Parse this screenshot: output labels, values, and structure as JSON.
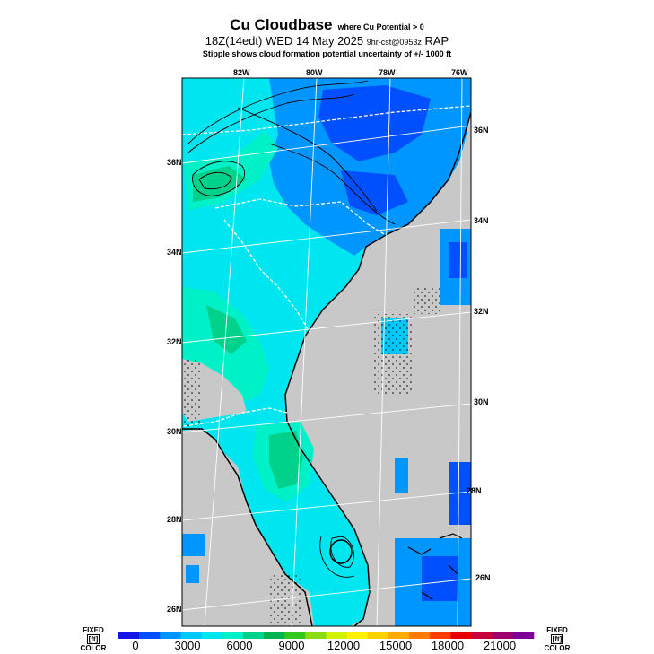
{
  "title": {
    "main": "Cu Cloudbase",
    "qualifier": "where Cu Potential > 0",
    "valid": "18Z(14edt) WED 14 May 2025",
    "forecast": "9hr-cst@0953z",
    "model": "RAP",
    "note": "Stipple shows cloud formation potential uncertainty of +/-  1000 ft"
  },
  "map": {
    "region": "Southeastern US (Georgia, South Carolina, Florida)",
    "land_no_data_color": "#c8c8c8",
    "lon_labels_top": [
      "82W",
      "80W",
      "78W",
      "76W"
    ],
    "lat_labels_left": [
      "36N",
      "34N",
      "32N",
      "30N",
      "28N",
      "26N"
    ],
    "lat_labels_right": [
      "36N",
      "34N",
      "32N",
      "30N",
      "28N",
      "26N"
    ]
  },
  "colorbar": {
    "left_label_top": "FIXED",
    "left_label_unit": "[ft]",
    "left_label_bottom": "COLOR",
    "right_label_top": "FIXED",
    "right_label_unit": "[ft]",
    "right_label_bottom": "COLOR",
    "ticks": [
      "0",
      "3000",
      "6000",
      "9000",
      "12000",
      "15000",
      "18000",
      "21000"
    ],
    "colors": [
      "#1414e6",
      "#0050ff",
      "#0096ff",
      "#00c8ff",
      "#00e6f0",
      "#00f0c8",
      "#00d28c",
      "#00b450",
      "#32c81e",
      "#8cdc14",
      "#d2f000",
      "#fff000",
      "#ffd200",
      "#ffaa00",
      "#ff7800",
      "#ff3c00",
      "#e60000",
      "#c8003c",
      "#a0006e",
      "#7d0096"
    ]
  }
}
